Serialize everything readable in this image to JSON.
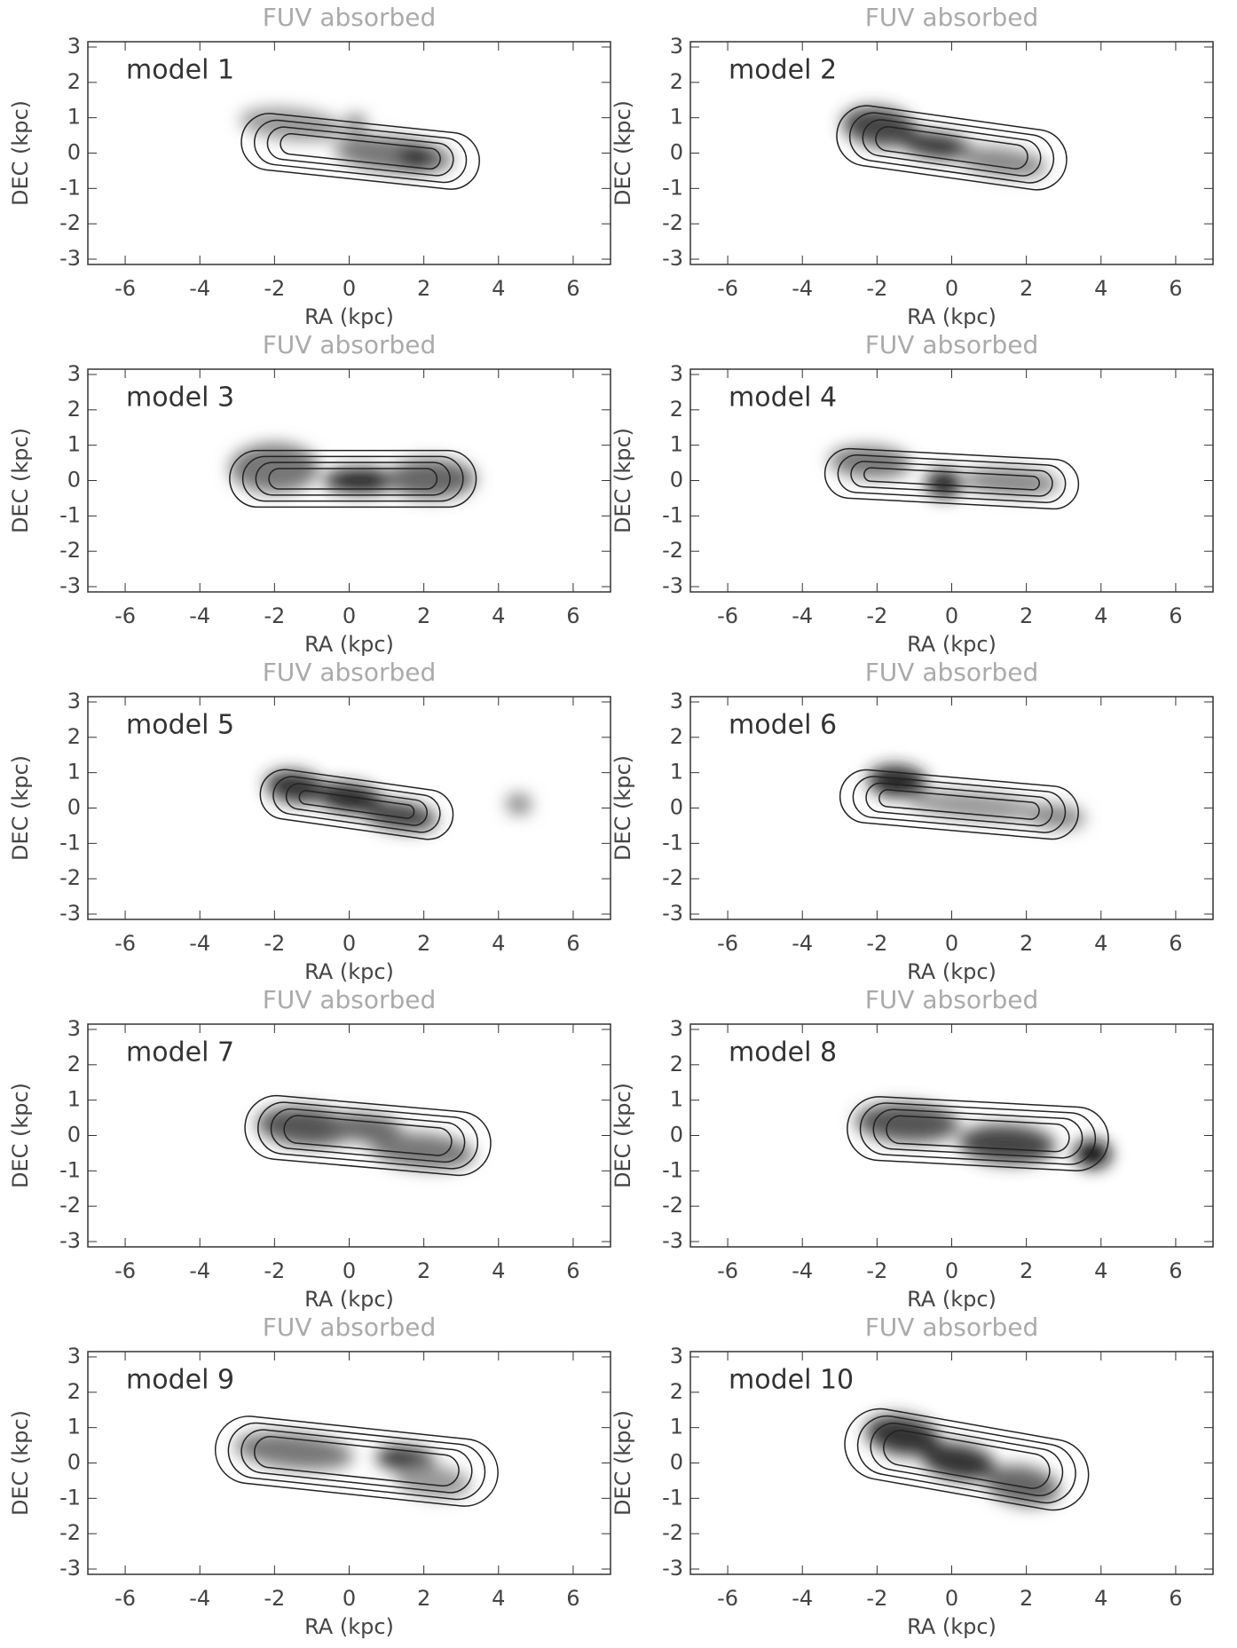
{
  "chart_data": [
    {
      "type": "image",
      "title": "FUV absorbed",
      "annotation": "model 1",
      "xlabel": "RA (kpc)",
      "ylabel": "DEC (kpc)",
      "xlim": [
        -7,
        7
      ],
      "ylim": [
        -3.15,
        3.15
      ],
      "xticks": [
        -6,
        -4,
        -2,
        0,
        2,
        4,
        6
      ],
      "yticks": [
        -3,
        -2,
        -1,
        0,
        1,
        2,
        3
      ]
    },
    {
      "type": "image",
      "title": "FUV absorbed",
      "annotation": "model 2",
      "xlabel": "RA (kpc)",
      "ylabel": "DEC (kpc)",
      "xlim": [
        -7,
        7
      ],
      "ylim": [
        -3.15,
        3.15
      ],
      "xticks": [
        -6,
        -4,
        -2,
        0,
        2,
        4,
        6
      ],
      "yticks": [
        -3,
        -2,
        -1,
        0,
        1,
        2,
        3
      ]
    },
    {
      "type": "image",
      "title": "FUV absorbed",
      "annotation": "model 3",
      "xlabel": "RA (kpc)",
      "ylabel": "DEC (kpc)",
      "xlim": [
        -7,
        7
      ],
      "ylim": [
        -3.15,
        3.15
      ],
      "xticks": [
        -6,
        -4,
        -2,
        0,
        2,
        4,
        6
      ],
      "yticks": [
        -3,
        -2,
        -1,
        0,
        1,
        2,
        3
      ]
    },
    {
      "type": "image",
      "title": "FUV absorbed",
      "annotation": "model 4",
      "xlabel": "RA (kpc)",
      "ylabel": "DEC (kpc)",
      "xlim": [
        -7,
        7
      ],
      "ylim": [
        -3.15,
        3.15
      ],
      "xticks": [
        -6,
        -4,
        -2,
        0,
        2,
        4,
        6
      ],
      "yticks": [
        -3,
        -2,
        -1,
        0,
        1,
        2,
        3
      ]
    },
    {
      "type": "image",
      "title": "FUV absorbed",
      "annotation": "model 5",
      "xlabel": "RA (kpc)",
      "ylabel": "DEC (kpc)",
      "xlim": [
        -7,
        7
      ],
      "ylim": [
        -3.15,
        3.15
      ],
      "xticks": [
        -6,
        -4,
        -2,
        0,
        2,
        4,
        6
      ],
      "yticks": [
        -3,
        -2,
        -1,
        0,
        1,
        2,
        3
      ]
    },
    {
      "type": "image",
      "title": "FUV absorbed",
      "annotation": "model 6",
      "xlabel": "RA (kpc)",
      "ylabel": "DEC (kpc)",
      "xlim": [
        -7,
        7
      ],
      "ylim": [
        -3.15,
        3.15
      ],
      "xticks": [
        -6,
        -4,
        -2,
        0,
        2,
        4,
        6
      ],
      "yticks": [
        -3,
        -2,
        -1,
        0,
        1,
        2,
        3
      ]
    },
    {
      "type": "image",
      "title": "FUV absorbed",
      "annotation": "model 7",
      "xlabel": "RA (kpc)",
      "ylabel": "DEC (kpc)",
      "xlim": [
        -7,
        7
      ],
      "ylim": [
        -3.15,
        3.15
      ],
      "xticks": [
        -6,
        -4,
        -2,
        0,
        2,
        4,
        6
      ],
      "yticks": [
        -3,
        -2,
        -1,
        0,
        1,
        2,
        3
      ]
    },
    {
      "type": "image",
      "title": "FUV absorbed",
      "annotation": "model 8",
      "xlabel": "RA (kpc)",
      "ylabel": "DEC (kpc)",
      "xlim": [
        -7,
        7
      ],
      "ylim": [
        -3.15,
        3.15
      ],
      "xticks": [
        -6,
        -4,
        -2,
        0,
        2,
        4,
        6
      ],
      "yticks": [
        -3,
        -2,
        -1,
        0,
        1,
        2,
        3
      ]
    },
    {
      "type": "image",
      "title": "FUV absorbed",
      "annotation": "model 9",
      "xlabel": "RA (kpc)",
      "ylabel": "DEC (kpc)",
      "xlim": [
        -7,
        7
      ],
      "ylim": [
        -3.15,
        3.15
      ],
      "xticks": [
        -6,
        -4,
        -2,
        0,
        2,
        4,
        6
      ],
      "yticks": [
        -3,
        -2,
        -1,
        0,
        1,
        2,
        3
      ]
    },
    {
      "type": "image",
      "title": "FUV absorbed",
      "annotation": "model 10",
      "xlabel": "RA (kpc)",
      "ylabel": "DEC (kpc)",
      "xlim": [
        -7,
        7
      ],
      "ylim": [
        -3.15,
        3.15
      ],
      "xticks": [
        -6,
        -4,
        -2,
        0,
        2,
        4,
        6
      ],
      "yticks": [
        -3,
        -2,
        -1,
        0,
        1,
        2,
        3
      ]
    }
  ]
}
